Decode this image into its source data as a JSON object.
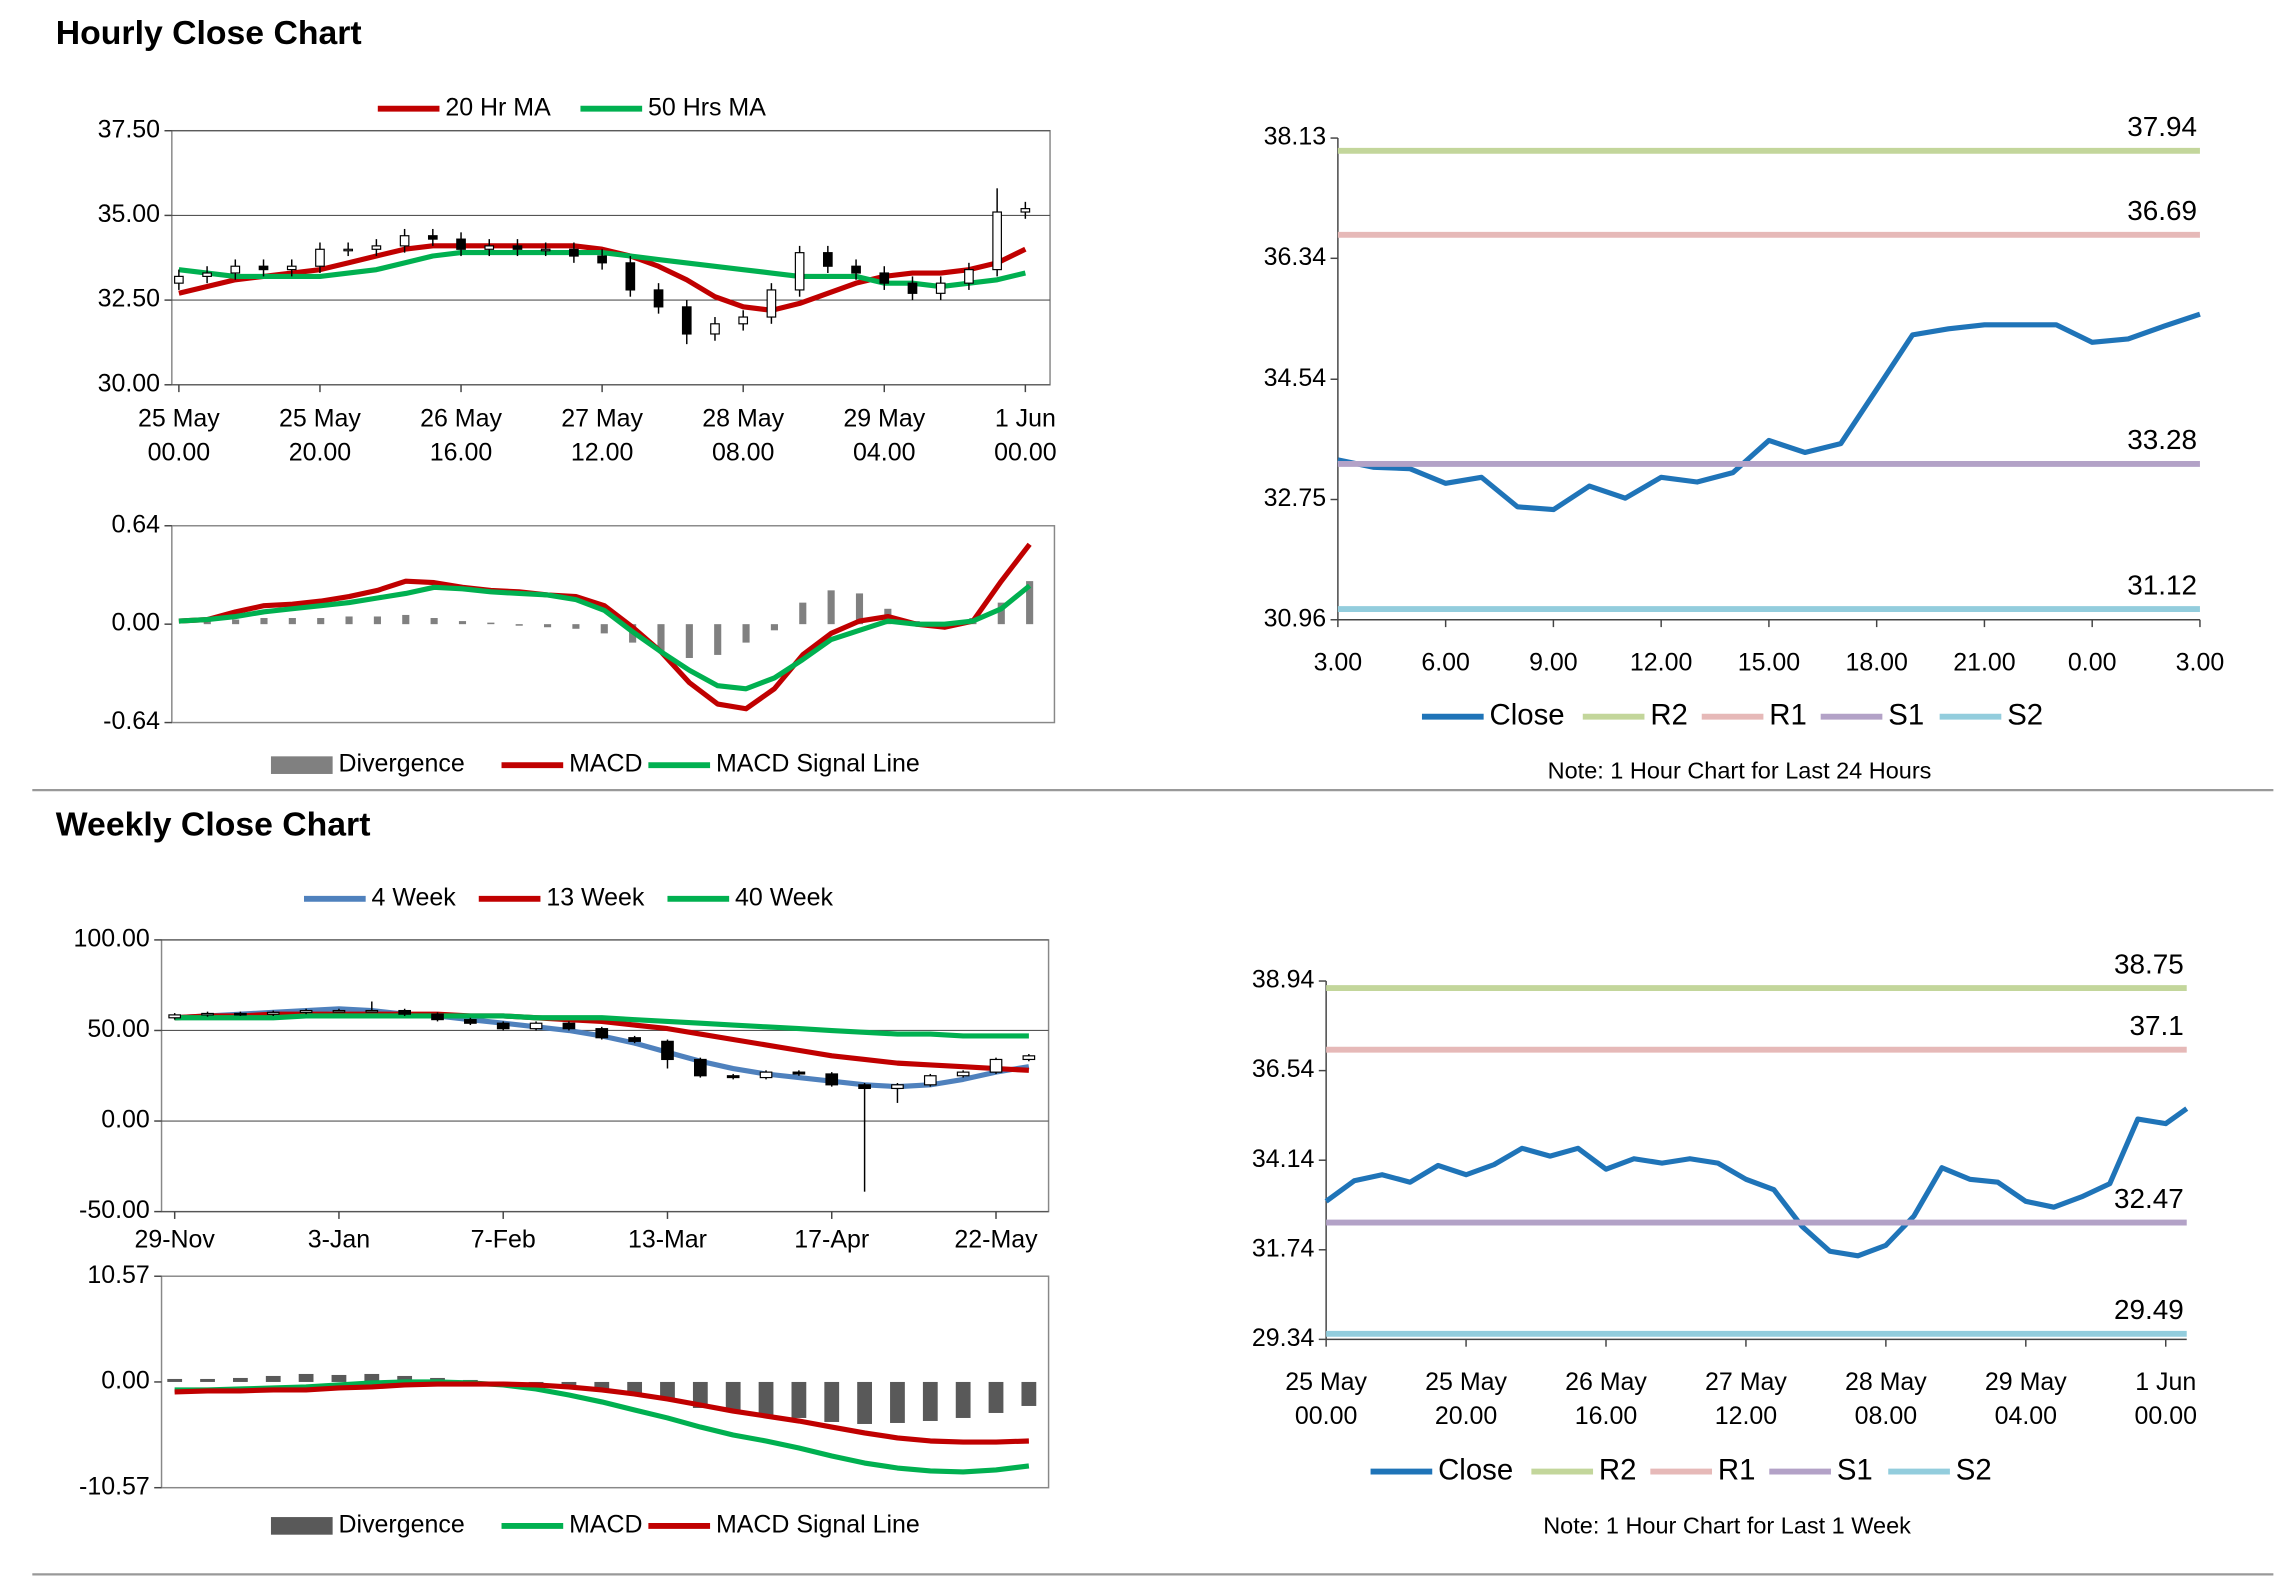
{
  "titles": [
    "Hourly Close Chart",
    "Weekly Close Chart"
  ],
  "chart_data": [
    {
      "type": "candlestick",
      "grid": true,
      "legend": "top",
      "up_color": "#ffffff",
      "down_color": "#000000",
      "xlim": [
        -1,
        123.5
      ],
      "ylim": [
        30,
        37.5
      ],
      "yticks": [
        {
          "value": 37.5,
          "label": "37.50"
        },
        {
          "value": 35,
          "label": "35.00"
        },
        {
          "value": 32.5,
          "label": "32.50"
        },
        {
          "value": 30,
          "label": "30.00"
        }
      ],
      "xticks": [
        {
          "value": 0,
          "label": [
            "25 May",
            "00.00"
          ]
        },
        {
          "value": 20,
          "label": [
            "25 May",
            "20.00"
          ]
        },
        {
          "value": 40,
          "label": [
            "26 May",
            "16.00"
          ]
        },
        {
          "value": 60,
          "label": [
            "27 May",
            "12.00"
          ]
        },
        {
          "value": 80,
          "label": [
            "28 May",
            "08.00"
          ]
        },
        {
          "value": 100,
          "label": [
            "29 May",
            "04.00"
          ]
        },
        {
          "value": 120,
          "label": [
            "1 Jun",
            "00.00"
          ]
        }
      ],
      "x": [
        0,
        4,
        8,
        12,
        16,
        20,
        24,
        28,
        32,
        36,
        40,
        44,
        48,
        52,
        56,
        60,
        64,
        68,
        72,
        76,
        80,
        84,
        88,
        92,
        96,
        100,
        104,
        108,
        112,
        116,
        120
      ],
      "open": [
        33.0,
        33.2,
        33.3,
        33.5,
        33.4,
        33.5,
        34.0,
        34.0,
        34.1,
        34.4,
        34.3,
        34.0,
        34.1,
        34.0,
        34.0,
        33.8,
        33.6,
        32.8,
        32.3,
        31.5,
        31.8,
        32.0,
        32.8,
        33.9,
        33.5,
        33.3,
        33.0,
        32.7,
        33.0,
        33.4,
        35.1
      ],
      "high": [
        33.4,
        33.5,
        33.7,
        33.7,
        33.7,
        34.2,
        34.2,
        34.3,
        34.6,
        34.6,
        34.5,
        34.3,
        34.3,
        34.2,
        34.2,
        34.0,
        33.8,
        33.0,
        32.5,
        32.0,
        32.2,
        33.0,
        34.1,
        34.1,
        33.7,
        33.5,
        33.2,
        33.2,
        33.6,
        35.8,
        35.4
      ],
      "low": [
        32.8,
        33.0,
        33.1,
        33.2,
        33.2,
        33.3,
        33.8,
        33.8,
        33.9,
        34.1,
        33.8,
        33.8,
        33.8,
        33.8,
        33.6,
        33.4,
        32.6,
        32.1,
        31.2,
        31.3,
        31.6,
        31.8,
        32.6,
        33.3,
        33.1,
        32.8,
        32.5,
        32.5,
        32.8,
        33.2,
        34.9
      ],
      "close": [
        33.2,
        33.3,
        33.5,
        33.4,
        33.5,
        34.0,
        34.0,
        34.1,
        34.4,
        34.3,
        34.0,
        34.1,
        34.0,
        34.0,
        33.8,
        33.6,
        32.8,
        32.3,
        31.5,
        31.8,
        32.0,
        32.8,
        33.9,
        33.5,
        33.3,
        33.0,
        32.7,
        33.0,
        33.4,
        35.1,
        35.2
      ],
      "series": [
        {
          "name": "20 Hr MA",
          "color": "#c00000",
          "values": [
            32.7,
            32.9,
            33.1,
            33.2,
            33.3,
            33.4,
            33.6,
            33.8,
            34.0,
            34.1,
            34.1,
            34.1,
            34.1,
            34.1,
            34.1,
            34.0,
            33.8,
            33.5,
            33.1,
            32.6,
            32.3,
            32.2,
            32.4,
            32.7,
            33.0,
            33.2,
            33.3,
            33.3,
            33.4,
            33.6,
            34.0
          ]
        },
        {
          "name": "50 Hrs MA",
          "color": "#00b050",
          "values": [
            33.4,
            33.3,
            33.2,
            33.2,
            33.2,
            33.2,
            33.3,
            33.4,
            33.6,
            33.8,
            33.9,
            33.9,
            33.9,
            33.9,
            33.9,
            33.9,
            33.8,
            33.7,
            33.6,
            33.5,
            33.4,
            33.3,
            33.2,
            33.2,
            33.2,
            33.0,
            33.0,
            32.9,
            33.0,
            33.1,
            33.3
          ]
        }
      ]
    },
    {
      "type": "combo",
      "legend": "bottom",
      "xlim": [
        -1,
        123.5
      ],
      "ylim": [
        -0.64,
        0.64
      ],
      "yticks": [
        0.64,
        {
          "value": 0,
          "label": "0.00"
        },
        -0.64
      ],
      "x": [
        0,
        4,
        8,
        12,
        16,
        20,
        24,
        28,
        32,
        36,
        40,
        44,
        48,
        52,
        56,
        60,
        64,
        68,
        72,
        76,
        80,
        84,
        88,
        92,
        96,
        100,
        104,
        108,
        112,
        116,
        120
      ],
      "series": [
        {
          "name": "Divergence",
          "kind": "bar",
          "color": "#808080",
          "values": [
            0,
            0.02,
            0.03,
            0.04,
            0.04,
            0.04,
            0.05,
            0.05,
            0.06,
            0.04,
            0.02,
            0.01,
            -0.01,
            -0.02,
            -0.03,
            -0.06,
            -0.12,
            -0.18,
            -0.22,
            -0.2,
            -0.12,
            -0.04,
            0.14,
            0.22,
            0.2,
            0.1,
            0.02,
            -0.03,
            0.04,
            0.14,
            0.28
          ]
        },
        {
          "name": "MACD",
          "kind": "line",
          "color": "#c00000",
          "values": [
            0.02,
            0.03,
            0.08,
            0.12,
            0.13,
            0.15,
            0.18,
            0.22,
            0.28,
            0.27,
            0.24,
            0.22,
            0.21,
            0.19,
            0.18,
            0.12,
            -0.02,
            -0.18,
            -0.38,
            -0.52,
            -0.55,
            -0.42,
            -0.2,
            -0.06,
            0.02,
            0.05,
            0.0,
            -0.02,
            0.02,
            0.28,
            0.52
          ]
        },
        {
          "name": "MACD Signal Line",
          "kind": "line",
          "color": "#00b050",
          "values": [
            0.02,
            0.03,
            0.05,
            0.08,
            0.1,
            0.12,
            0.14,
            0.17,
            0.2,
            0.24,
            0.23,
            0.21,
            0.2,
            0.19,
            0.16,
            0.09,
            -0.05,
            -0.18,
            -0.3,
            -0.4,
            -0.42,
            -0.35,
            -0.23,
            -0.1,
            -0.04,
            0.02,
            0.0,
            0.0,
            0.02,
            0.1,
            0.25
          ]
        }
      ]
    },
    {
      "type": "line",
      "legend": "bottom",
      "note": "Note: 1 Hour Chart for Last 24 Hours",
      "xlim": [
        0,
        24
      ],
      "ylim": [
        30.96,
        38.13
      ],
      "yticks": [
        30.96,
        32.75,
        34.54,
        36.34,
        38.13
      ],
      "xticks": [
        {
          "value": 0,
          "label": "3.00"
        },
        {
          "value": 3,
          "label": "6.00"
        },
        {
          "value": 6,
          "label": "9.00"
        },
        {
          "value": 9,
          "label": "12.00"
        },
        {
          "value": 12,
          "label": "15.00"
        },
        {
          "value": 15,
          "label": "18.00"
        },
        {
          "value": 18,
          "label": "21.00"
        },
        {
          "value": 21,
          "label": "0.00"
        },
        {
          "value": 24,
          "label": "3.00"
        }
      ],
      "x": [
        0,
        1,
        2,
        3,
        4,
        5,
        6,
        7,
        8,
        9,
        10,
        11,
        12,
        13,
        14,
        15,
        16,
        17,
        18,
        19,
        20,
        21,
        22,
        23,
        24
      ],
      "series": [
        {
          "name": "Close",
          "color": "#1f74b8",
          "values": [
            33.34,
            33.23,
            33.21,
            32.99,
            33.08,
            32.64,
            32.6,
            32.95,
            32.77,
            33.08,
            33.01,
            33.15,
            33.63,
            33.45,
            33.58,
            34.39,
            35.2,
            35.29,
            35.35,
            35.35,
            35.35,
            35.09,
            35.14,
            35.33,
            35.51
          ]
        },
        {
          "name": "R2",
          "color": "#c3d69b",
          "value": 37.94
        },
        {
          "name": "R1",
          "color": "#e6b9b8",
          "value": 36.69
        },
        {
          "name": "S1",
          "color": "#b3a2c7",
          "value": 33.28
        },
        {
          "name": "S2",
          "color": "#93cddd",
          "value": 31.12
        }
      ]
    },
    {
      "type": "candlestick",
      "grid": true,
      "legend": "top",
      "up_color": "#ffffff",
      "down_color": "#000000",
      "xlim": [
        -0.4,
        26.6
      ],
      "ylim": [
        -50,
        100
      ],
      "yticks": [
        {
          "value": 100,
          "label": "100.00"
        },
        {
          "value": 50,
          "label": "50.00"
        },
        {
          "value": 0,
          "label": "0.00"
        },
        {
          "value": -50,
          "label": "-50.00"
        }
      ],
      "xticks": [
        {
          "value": 0,
          "label": "29-Nov"
        },
        {
          "value": 5,
          "label": "3-Jan"
        },
        {
          "value": 10,
          "label": "7-Feb"
        },
        {
          "value": 15,
          "label": "13-Mar"
        },
        {
          "value": 20,
          "label": "17-Apr"
        },
        {
          "value": 25,
          "label": "22-May"
        }
      ],
      "x": [
        0,
        1,
        2,
        3,
        4,
        5,
        6,
        7,
        8,
        9,
        10,
        11,
        12,
        13,
        14,
        15,
        16,
        17,
        18,
        19,
        20,
        21,
        22,
        23,
        24,
        25,
        26
      ],
      "open": [
        57,
        58.6,
        59.4,
        59,
        60,
        61,
        61,
        61,
        59,
        56,
        54,
        51,
        54,
        51,
        46,
        44,
        34,
        25,
        24,
        27,
        26,
        20,
        18,
        20,
        25,
        27,
        34
      ],
      "high": [
        59.6,
        60.4,
        60.4,
        61,
        62,
        62,
        66,
        62,
        60,
        57,
        55,
        55,
        55,
        52,
        47,
        45,
        35,
        26,
        28,
        28,
        27,
        21,
        21,
        26,
        28,
        35,
        37
      ],
      "low": [
        56,
        57.6,
        58,
        58,
        59,
        60,
        60,
        58,
        55,
        53,
        50,
        50,
        50,
        45,
        43,
        29,
        24,
        23,
        23,
        25,
        19,
        -39,
        10,
        19,
        24,
        26,
        33
      ],
      "close": [
        58.6,
        59.4,
        59,
        60,
        61,
        61,
        61,
        59,
        56,
        54,
        51,
        54,
        51,
        46,
        44,
        34,
        25,
        24,
        27,
        26,
        20,
        18,
        20,
        25,
        27,
        34,
        36
      ],
      "series": [
        {
          "name": "4 Week",
          "color": "#4f81bd",
          "values": [
            57,
            58,
            59,
            60,
            61,
            62,
            61,
            59,
            58,
            56,
            54,
            52,
            50,
            47,
            43,
            38,
            33,
            29,
            26,
            24,
            22,
            20,
            19,
            20,
            23,
            27,
            30
          ]
        },
        {
          "name": "13 Week",
          "color": "#c00000",
          "values": [
            57,
            58,
            58,
            59,
            59,
            59,
            59,
            59,
            59,
            58,
            58,
            57,
            56,
            55,
            53,
            51,
            48,
            45,
            42,
            39,
            36,
            34,
            32,
            31,
            30,
            29,
            28
          ]
        },
        {
          "name": "40 Week",
          "color": "#00b050",
          "values": [
            57,
            57,
            57,
            57,
            58,
            58,
            58,
            58,
            58,
            58,
            58,
            57,
            57,
            57,
            56,
            55,
            54,
            53,
            52,
            51,
            50,
            49,
            48,
            48,
            47,
            47,
            47
          ]
        }
      ]
    },
    {
      "type": "combo",
      "legend": "bottom",
      "xlim": [
        -0.4,
        26.6
      ],
      "ylim": [
        -10.57,
        10.57
      ],
      "yticks": [
        10.57,
        {
          "value": 0,
          "label": "0.00"
        },
        -10.57
      ],
      "x": [
        0,
        1,
        2,
        3,
        4,
        5,
        6,
        7,
        8,
        9,
        10,
        11,
        12,
        13,
        14,
        15,
        16,
        17,
        18,
        19,
        20,
        21,
        22,
        23,
        24,
        25,
        26
      ],
      "series": [
        {
          "name": "Divergence",
          "kind": "bar",
          "color": "#595959",
          "values": [
            0.3,
            0.3,
            0.4,
            0.6,
            0.8,
            0.7,
            0.8,
            0.6,
            0.4,
            0.2,
            -0.3,
            -0.5,
            -0.6,
            -0.9,
            -1.3,
            -1.8,
            -2.6,
            -3.0,
            -3.3,
            -3.6,
            -4.0,
            -4.2,
            -4.1,
            -3.9,
            -3.6,
            -3.1,
            -2.4
          ]
        },
        {
          "name": "MACD",
          "kind": "line",
          "color": "#00b050",
          "values": [
            -0.8,
            -0.8,
            -0.7,
            -0.6,
            -0.5,
            -0.3,
            -0.1,
            0.0,
            0.0,
            -0.1,
            -0.3,
            -0.7,
            -1.3,
            -2.0,
            -2.8,
            -3.6,
            -4.5,
            -5.3,
            -5.9,
            -6.6,
            -7.4,
            -8.1,
            -8.6,
            -8.9,
            -9.0,
            -8.8,
            -8.4
          ]
        },
        {
          "name": "MACD Signal Line",
          "kind": "line",
          "color": "#c00000",
          "values": [
            -1.0,
            -0.9,
            -0.9,
            -0.8,
            -0.8,
            -0.6,
            -0.5,
            -0.3,
            -0.2,
            -0.2,
            -0.2,
            -0.3,
            -0.5,
            -0.8,
            -1.2,
            -1.7,
            -2.3,
            -2.9,
            -3.4,
            -3.9,
            -4.5,
            -5.1,
            -5.6,
            -5.9,
            -6.0,
            -6.0,
            -5.9
          ]
        }
      ]
    },
    {
      "type": "line",
      "legend": "bottom",
      "note": "Note: 1 Hour Chart for Last 1 Week",
      "xlim": [
        0,
        123
      ],
      "ylim": [
        29.34,
        38.94
      ],
      "yticks": [
        29.34,
        31.74,
        34.14,
        36.54,
        38.94
      ],
      "xticks": [
        {
          "value": 0,
          "label": [
            "25 May",
            "00.00"
          ]
        },
        {
          "value": 20,
          "label": [
            "25 May",
            "20.00"
          ]
        },
        {
          "value": 40,
          "label": [
            "26 May",
            "16.00"
          ]
        },
        {
          "value": 60,
          "label": [
            "27 May",
            "12.00"
          ]
        },
        {
          "value": 80,
          "label": [
            "28 May",
            "08.00"
          ]
        },
        {
          "value": 100,
          "label": [
            "29 May",
            "04.00"
          ]
        },
        {
          "value": 120,
          "label": [
            "1 Jun",
            "00.00"
          ]
        }
      ],
      "x": [
        0,
        4,
        8,
        12,
        16,
        20,
        24,
        28,
        32,
        36,
        40,
        44,
        48,
        52,
        56,
        60,
        64,
        68,
        72,
        76,
        80,
        84,
        88,
        92,
        96,
        100,
        104,
        108,
        112,
        116,
        120,
        123
      ],
      "series": [
        {
          "name": "Close",
          "color": "#1f74b8",
          "values": [
            33.04,
            33.59,
            33.75,
            33.55,
            34.0,
            33.75,
            34.02,
            34.46,
            34.25,
            34.46,
            33.9,
            34.18,
            34.06,
            34.18,
            34.06,
            33.63,
            33.35,
            32.37,
            31.7,
            31.58,
            31.86,
            32.64,
            33.94,
            33.63,
            33.55,
            33.04,
            32.88,
            33.16,
            33.51,
            35.24,
            35.12,
            35.52
          ]
        },
        {
          "name": "R2",
          "color": "#c3d69b",
          "value": 38.75
        },
        {
          "name": "R1",
          "color": "#e6b9b8",
          "value": 37.1
        },
        {
          "name": "S1",
          "color": "#b3a2c7",
          "value": 32.47
        },
        {
          "name": "S2",
          "color": "#93cddd",
          "value": 29.49
        }
      ]
    }
  ]
}
